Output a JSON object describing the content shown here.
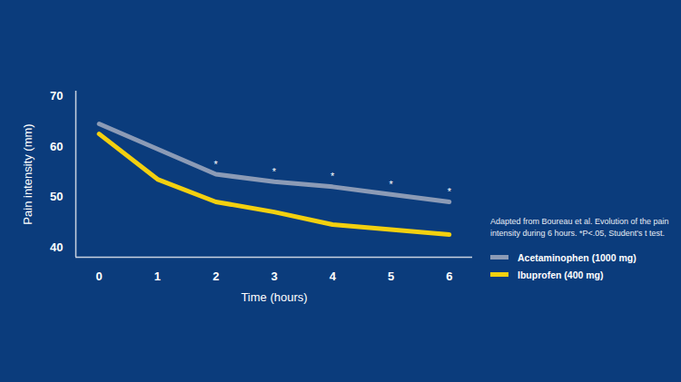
{
  "chart_data": {
    "type": "line",
    "x": [
      0,
      1,
      2,
      3,
      4,
      5,
      6
    ],
    "series": [
      {
        "name": "Acetaminophen (1000 mg)",
        "color": "#8c9bb6",
        "values": [
          64.5,
          59.5,
          54.5,
          53,
          52,
          50.5,
          49
        ]
      },
      {
        "name": "Ibuprofen (400 mg)",
        "color": "#f3d00f",
        "values": [
          62.5,
          53.5,
          49,
          47,
          44.5,
          43.5,
          42.5
        ]
      }
    ],
    "xlabel": "Time (hours)",
    "ylabel": "Pain intensity (mm)",
    "xlim": [
      -0.4,
      6.4
    ],
    "ylim": [
      38,
      71
    ],
    "xticks": [
      0,
      1,
      2,
      3,
      4,
      5,
      6
    ],
    "yticks": [
      40,
      50,
      60,
      70
    ],
    "caption": "Adapted from Boureau et al.  Evolution of the pain intensity during 6 hours. *P<.05, Student's t test.",
    "annotations": [
      {
        "text": "*",
        "x": 2
      },
      {
        "text": "*",
        "x": 3
      },
      {
        "text": "*",
        "x": 4
      },
      {
        "text": "*",
        "x": 5
      },
      {
        "text": "*",
        "x": 6
      }
    ],
    "legend": "right",
    "grid": false
  }
}
